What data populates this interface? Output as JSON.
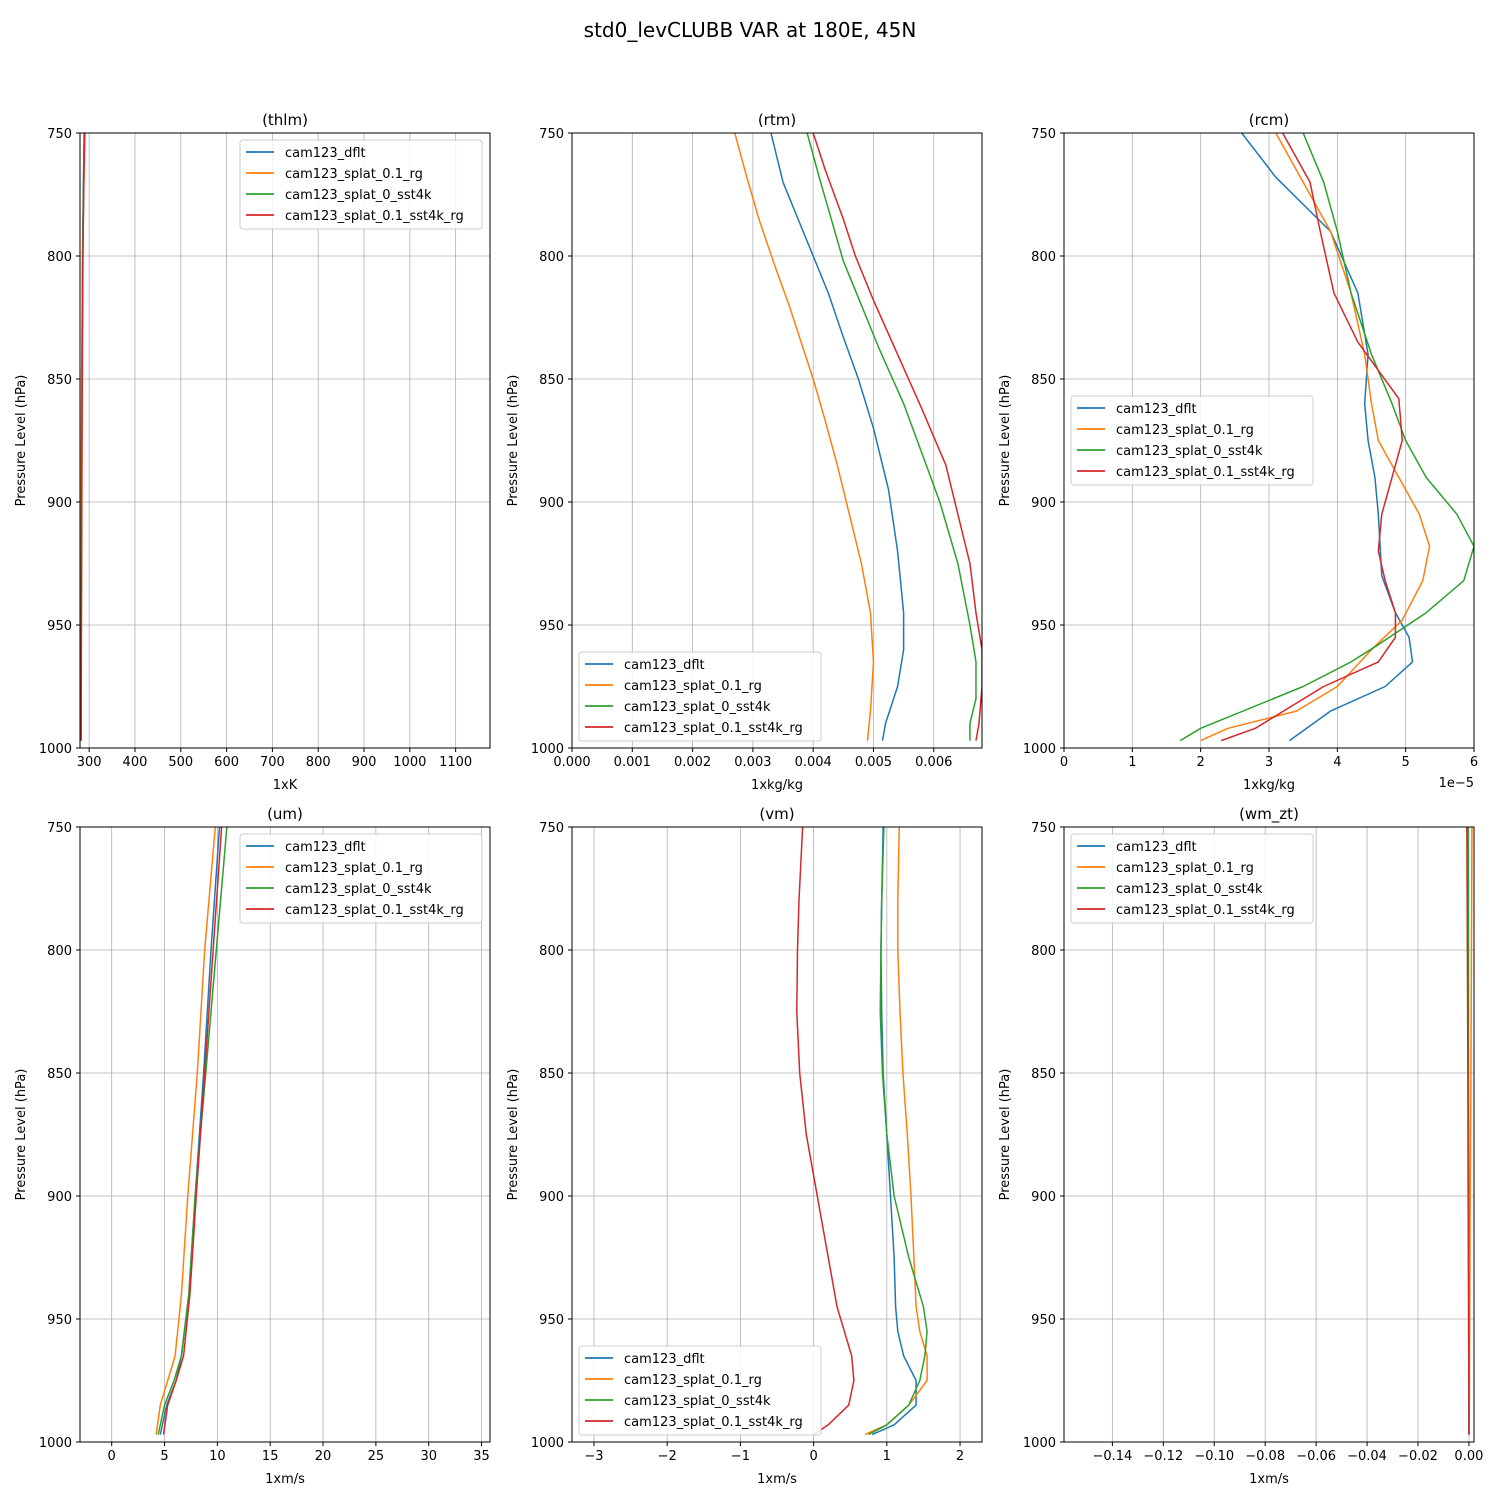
{
  "figure": {
    "title": "std0_levCLUBB VAR at 180E, 45N"
  },
  "chart_data": [
    {
      "type": "line",
      "title": "(thlm)",
      "xlabel": "1xK",
      "ylabel": "Pressure Level (hPa)",
      "xlim": [
        280,
        1175
      ],
      "ylim": [
        1000,
        750
      ],
      "xticks": [
        300,
        400,
        500,
        600,
        700,
        800,
        900,
        1000,
        1100
      ],
      "xtick_labels": [
        "300",
        "400",
        "500",
        "600",
        "700",
        "800",
        "900",
        "1000",
        "1100"
      ],
      "yticks": [
        750,
        800,
        850,
        900,
        950,
        1000
      ],
      "ytick_labels": [
        "750",
        "800",
        "850",
        "900",
        "950",
        "1000"
      ],
      "offset_text": "",
      "grid": true,
      "legend": "upper right",
      "series": [
        {
          "name": "cam123_dflt",
          "color": "#1f77b4",
          "x": [
            282,
            282.5,
            283,
            284,
            285.5,
            287,
            289
          ],
          "y": [
            997,
            950,
            900,
            850,
            800,
            775,
            750
          ]
        },
        {
          "name": "cam123_splat_0.1_rg",
          "color": "#ff7f0e",
          "x": [
            281.5,
            282,
            282.5,
            283.5,
            286,
            288,
            291
          ],
          "y": [
            997,
            950,
            900,
            850,
            800,
            775,
            750
          ]
        },
        {
          "name": "cam123_splat_0_sst4k",
          "color": "#2ca02c",
          "x": [
            282.5,
            283,
            283.5,
            284.5,
            286,
            287.5,
            289.5
          ],
          "y": [
            997,
            950,
            900,
            850,
            800,
            775,
            750
          ]
        },
        {
          "name": "cam123_splat_0.1_sst4k_rg",
          "color": "#d62728",
          "x": [
            282.5,
            283,
            284,
            285,
            286.5,
            288,
            290
          ],
          "y": [
            997,
            950,
            900,
            850,
            800,
            775,
            750
          ]
        }
      ]
    },
    {
      "type": "line",
      "title": "(rtm)",
      "xlabel": "1xkg/kg",
      "ylabel": "Pressure Level (hPa)",
      "xlim": [
        0,
        0.0068
      ],
      "ylim": [
        1000,
        750
      ],
      "xticks": [
        0,
        0.001,
        0.002,
        0.003,
        0.004,
        0.005,
        0.006
      ],
      "xtick_labels": [
        "0.000",
        "0.001",
        "0.002",
        "0.003",
        "0.004",
        "0.005",
        "0.006"
      ],
      "yticks": [
        750,
        800,
        850,
        900,
        950,
        1000
      ],
      "ytick_labels": [
        "750",
        "800",
        "850",
        "900",
        "950",
        "1000"
      ],
      "offset_text": "",
      "grid": true,
      "legend": "lower left",
      "series": [
        {
          "name": "cam123_dflt",
          "color": "#1f77b4",
          "x": [
            0.0033,
            0.0035,
            0.00375,
            0.004,
            0.00425,
            0.0045,
            0.00475,
            0.005,
            0.00525,
            0.0054,
            0.0055,
            0.0055,
            0.0054,
            0.0052,
            0.00515
          ],
          "y": [
            750,
            770,
            785,
            800,
            815,
            833,
            850,
            870,
            895,
            920,
            945,
            960,
            975,
            990,
            997
          ]
        },
        {
          "name": "cam123_splat_0.1_rg",
          "color": "#ff7f0e",
          "x": [
            0.0027,
            0.0029,
            0.0031,
            0.00335,
            0.0036,
            0.0038,
            0.004,
            0.0042,
            0.0044,
            0.0046,
            0.0048,
            0.00495,
            0.005,
            0.00495,
            0.0049
          ],
          "y": [
            750,
            768,
            785,
            803,
            820,
            835,
            850,
            867,
            885,
            905,
            925,
            945,
            965,
            985,
            997
          ]
        },
        {
          "name": "cam123_splat_0_sst4k",
          "color": "#2ca02c",
          "x": [
            0.0039,
            0.0041,
            0.0043,
            0.0045,
            0.0048,
            0.0051,
            0.0055,
            0.0058,
            0.0061,
            0.0064,
            0.0066,
            0.0067,
            0.0067,
            0.0066,
            0.0066
          ],
          "y": [
            750,
            768,
            785,
            802,
            820,
            838,
            860,
            880,
            900,
            925,
            950,
            965,
            980,
            990,
            997
          ]
        },
        {
          "name": "cam123_splat_0.1_sst4k_rg",
          "color": "#d62728",
          "x": [
            0.004,
            0.0042,
            0.0045,
            0.0047,
            0.005,
            0.0054,
            0.0058,
            0.0062,
            0.0064,
            0.0066,
            0.0067,
            0.0068,
            0.0068,
            0.00675,
            0.0067
          ],
          "y": [
            750,
            765,
            785,
            800,
            818,
            840,
            862,
            885,
            905,
            925,
            945,
            960,
            975,
            990,
            997
          ]
        }
      ]
    },
    {
      "type": "line",
      "title": "(rcm)",
      "xlabel": "1xkg/kg",
      "ylabel": "Pressure Level (hPa)",
      "xlim": [
        0,
        6e-05
      ],
      "ylim": [
        1000,
        750
      ],
      "xticks": [
        0,
        1e-05,
        2e-05,
        3e-05,
        4e-05,
        5e-05,
        6e-05
      ],
      "xtick_labels": [
        "0",
        "1",
        "2",
        "3",
        "4",
        "5",
        "6"
      ],
      "yticks": [
        750,
        800,
        850,
        900,
        950,
        1000
      ],
      "ytick_labels": [
        "750",
        "800",
        "850",
        "900",
        "950",
        "1000"
      ],
      "offset_text": "1e−5",
      "grid": true,
      "legend": "center left",
      "series": [
        {
          "name": "cam123_dflt",
          "color": "#1f77b4",
          "x": [
            2.6e-05,
            3.1e-05,
            3.9e-05,
            4.3e-05,
            4.45e-05,
            4.4e-05,
            4.45e-05,
            4.55e-05,
            4.6e-05,
            4.65e-05,
            4.85e-05,
            5.05e-05,
            5.1e-05,
            4.7e-05,
            3.9e-05,
            3.3e-05
          ],
          "y": [
            750,
            768,
            790,
            815,
            840,
            860,
            875,
            890,
            905,
            930,
            945,
            955,
            965,
            975,
            985,
            997
          ]
        },
        {
          "name": "cam123_splat_0.1_rg",
          "color": "#ff7f0e",
          "x": [
            3.1e-05,
            3.5e-05,
            3.9e-05,
            4.2e-05,
            4.4e-05,
            4.5e-05,
            4.6e-05,
            4.9e-05,
            5.2e-05,
            5.35e-05,
            5.25e-05,
            4.95e-05,
            4.5e-05,
            4e-05,
            3.4e-05,
            2.4e-05,
            2e-05
          ],
          "y": [
            750,
            770,
            790,
            815,
            840,
            860,
            875,
            890,
            905,
            918,
            932,
            948,
            960,
            975,
            985,
            992,
            997
          ]
        },
        {
          "name": "cam123_splat_0_sst4k",
          "color": "#2ca02c",
          "x": [
            3.5e-05,
            3.8e-05,
            4e-05,
            4.2e-05,
            4.5e-05,
            4.8e-05,
            5e-05,
            5.3e-05,
            5.75e-05,
            6e-05,
            5.85e-05,
            5.3e-05,
            4.6e-05,
            4.2e-05,
            3.5e-05,
            2e-05,
            1.7e-05
          ],
          "y": [
            750,
            770,
            790,
            815,
            840,
            860,
            875,
            890,
            905,
            918,
            932,
            945,
            958,
            965,
            975,
            992,
            997
          ]
        },
        {
          "name": "cam123_splat_0.1_sst4k_rg",
          "color": "#d62728",
          "x": [
            3.2e-05,
            3.6e-05,
            3.75e-05,
            3.95e-05,
            4.3e-05,
            4.9e-05,
            4.95e-05,
            4.8e-05,
            4.65e-05,
            4.6e-05,
            4.7e-05,
            4.85e-05,
            4.85e-05,
            4.6e-05,
            3.8e-05,
            2.8e-05,
            2.3e-05
          ],
          "y": [
            750,
            770,
            790,
            815,
            835,
            858,
            875,
            890,
            905,
            920,
            932,
            945,
            955,
            965,
            975,
            992,
            997
          ]
        }
      ]
    },
    {
      "type": "line",
      "title": "(um)",
      "xlabel": "1xm/s",
      "ylabel": "Pressure Level (hPa)",
      "xlim": [
        -3,
        35.8
      ],
      "ylim": [
        1000,
        750
      ],
      "xticks": [
        0,
        5,
        10,
        15,
        20,
        25,
        30,
        35
      ],
      "xtick_labels": [
        "0",
        "5",
        "10",
        "15",
        "20",
        "25",
        "30",
        "35"
      ],
      "yticks": [
        750,
        800,
        850,
        900,
        950,
        1000
      ],
      "ytick_labels": [
        "750",
        "800",
        "850",
        "900",
        "950",
        "1000"
      ],
      "offset_text": "",
      "grid": true,
      "legend": "upper right",
      "series": [
        {
          "name": "cam123_dflt",
          "color": "#1f77b4",
          "x": [
            10.2,
            9.4,
            8.7,
            7.9,
            7.3,
            6.6,
            6.1,
            5.2,
            4.6
          ],
          "y": [
            750,
            800,
            850,
            900,
            940,
            965,
            975,
            985,
            997
          ]
        },
        {
          "name": "cam123_splat_0.1_rg",
          "color": "#ff7f0e",
          "x": [
            9.8,
            8.8,
            8.1,
            7.2,
            6.6,
            6.0,
            5.3,
            4.6,
            4.2
          ],
          "y": [
            750,
            800,
            850,
            900,
            940,
            965,
            975,
            985,
            997
          ]
        },
        {
          "name": "cam123_splat_0_sst4k",
          "color": "#2ca02c",
          "x": [
            10.9,
            9.9,
            8.9,
            7.9,
            7.3,
            6.6,
            5.9,
            5.0,
            4.4
          ],
          "y": [
            750,
            800,
            850,
            900,
            940,
            965,
            975,
            985,
            997
          ]
        },
        {
          "name": "cam123_splat_0.1_sst4k_rg",
          "color": "#d62728",
          "x": [
            10.4,
            9.6,
            8.8,
            8.0,
            7.4,
            6.8,
            6.1,
            5.3,
            4.9
          ],
          "y": [
            750,
            800,
            850,
            900,
            940,
            965,
            975,
            985,
            997
          ]
        }
      ]
    },
    {
      "type": "line",
      "title": "(vm)",
      "xlabel": "1xm/s",
      "ylabel": "Pressure Level (hPa)",
      "xlim": [
        -3.3,
        2.3
      ],
      "ylim": [
        1000,
        750
      ],
      "xticks": [
        -3,
        -2,
        -1,
        0,
        1,
        2
      ],
      "xtick_labels": [
        "−3",
        "−2",
        "−1",
        "0",
        "1",
        "2"
      ],
      "yticks": [
        750,
        800,
        850,
        900,
        950,
        1000
      ],
      "ytick_labels": [
        "750",
        "800",
        "850",
        "900",
        "950",
        "1000"
      ],
      "offset_text": "",
      "grid": true,
      "legend": "lower left",
      "series": [
        {
          "name": "cam123_dflt",
          "color": "#1f77b4",
          "x": [
            0.95,
            0.93,
            0.92,
            0.93,
            0.95,
            1.0,
            1.05,
            1.1,
            1.12,
            1.15,
            1.23,
            1.4,
            1.4,
            1.1,
            0.8
          ],
          "y": [
            750,
            780,
            800,
            825,
            850,
            875,
            900,
            925,
            945,
            955,
            965,
            975,
            985,
            993,
            997
          ]
        },
        {
          "name": "cam123_splat_0.1_rg",
          "color": "#ff7f0e",
          "x": [
            1.17,
            1.15,
            1.15,
            1.18,
            1.22,
            1.28,
            1.33,
            1.37,
            1.4,
            1.45,
            1.55,
            1.55,
            1.3,
            1.0,
            0.7
          ],
          "y": [
            750,
            780,
            800,
            825,
            850,
            875,
            900,
            925,
            945,
            955,
            965,
            975,
            985,
            993,
            997
          ]
        },
        {
          "name": "cam123_splat_0_sst4k",
          "color": "#2ca02c",
          "x": [
            0.96,
            0.93,
            0.92,
            0.91,
            0.94,
            1.0,
            1.1,
            1.3,
            1.5,
            1.55,
            1.52,
            1.45,
            1.3,
            1.0,
            0.75
          ],
          "y": [
            750,
            780,
            800,
            825,
            850,
            875,
            900,
            925,
            945,
            955,
            965,
            975,
            985,
            993,
            997
          ]
        },
        {
          "name": "cam123_splat_0.1_sst4k_rg",
          "color": "#d62728",
          "x": [
            -0.15,
            -0.2,
            -0.22,
            -0.23,
            -0.19,
            -0.1,
            0.05,
            0.2,
            0.32,
            0.42,
            0.52,
            0.55,
            0.48,
            0.2,
            0.0
          ],
          "y": [
            750,
            780,
            800,
            825,
            850,
            875,
            900,
            925,
            945,
            955,
            965,
            975,
            985,
            993,
            997
          ]
        }
      ]
    },
    {
      "type": "line",
      "title": "(wm_zt)",
      "xlabel": "1xm/s",
      "ylabel": "Pressure Level (hPa)",
      "xlim": [
        -0.159,
        0.002
      ],
      "ylim": [
        1000,
        750
      ],
      "xticks": [
        -0.14,
        -0.12,
        -0.1,
        -0.08,
        -0.06,
        -0.04,
        -0.02,
        0
      ],
      "xtick_labels": [
        "−0.14",
        "−0.12",
        "−0.10",
        "−0.08",
        "−0.06",
        "−0.04",
        "−0.02",
        "0.00"
      ],
      "yticks": [
        750,
        800,
        850,
        900,
        950,
        1000
      ],
      "ytick_labels": [
        "750",
        "800",
        "850",
        "900",
        "950",
        "1000"
      ],
      "offset_text": "",
      "grid": true,
      "legend": "upper left",
      "series": [
        {
          "name": "cam123_dflt",
          "color": "#1f77b4",
          "x": [
            -0.0005,
            -0.0004,
            -0.0003,
            -0.0002,
            -0.0001,
            0.0
          ],
          "y": [
            750,
            800,
            850,
            900,
            950,
            997
          ]
        },
        {
          "name": "cam123_splat_0.1_rg",
          "color": "#ff7f0e",
          "x": [
            0.0012,
            0.001,
            0.0008,
            0.0005,
            0.0003,
            0.0001
          ],
          "y": [
            750,
            800,
            850,
            900,
            950,
            997
          ]
        },
        {
          "name": "cam123_splat_0_sst4k",
          "color": "#2ca02c",
          "x": [
            -0.0003,
            -0.0002,
            -0.0002,
            -0.0001,
            0.0,
            0.0
          ],
          "y": [
            750,
            800,
            850,
            900,
            950,
            997
          ]
        },
        {
          "name": "cam123_splat_0.1_sst4k_rg",
          "color": "#d62728",
          "x": [
            -0.0008,
            -0.0006,
            -0.0004,
            -0.0003,
            -0.0001,
            0.0
          ],
          "y": [
            750,
            800,
            850,
            900,
            950,
            997
          ]
        }
      ]
    }
  ]
}
